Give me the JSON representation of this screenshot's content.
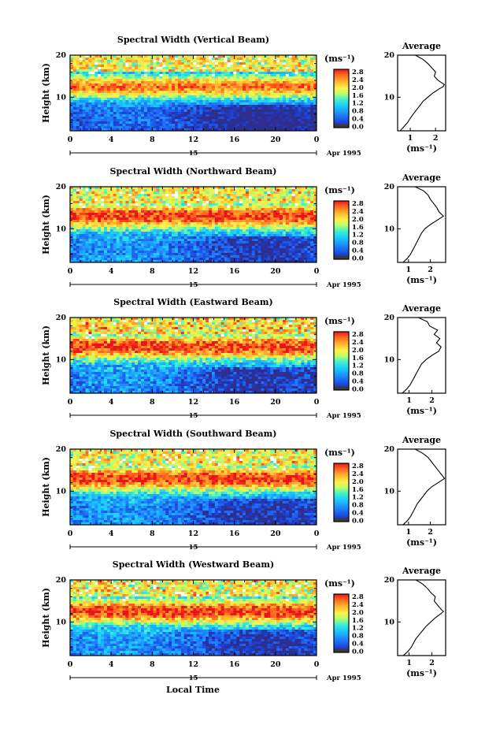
{
  "figure": {
    "colorbar_unit": "(ms⁻¹)",
    "colorbar_ticks": [
      "0.0",
      "0.4",
      "0.8",
      "1.2",
      "1.6",
      "2.0",
      "2.4",
      "2.8"
    ],
    "height_label": "Height (km)",
    "x_ticks": [
      "0",
      "4",
      "8",
      "12",
      "16",
      "20",
      "0"
    ],
    "date_day": "15",
    "date_month_year": "Apr 1995",
    "xlabel": "Local Time",
    "average_title": "Average",
    "average_unit": "(ms⁻¹)",
    "height_ticks": [
      "20",
      "10"
    ]
  },
  "chart_data": [
    {
      "type": "heatmap",
      "title": "Spectral Width (Vertical Beam)",
      "x": "Local Time (h)",
      "xlim": [
        0,
        24
      ],
      "ylim": [
        2,
        20
      ],
      "colorbar_range": [
        0.0,
        2.8
      ],
      "pattern": {
        "low": 0.35,
        "peak": 2.45,
        "peak_height": 12.5,
        "top": 1.9,
        "noise": 0.35
      },
      "average_profile": {
        "xticks": [
          "1",
          "2"
        ],
        "xlim": [
          0.5,
          2.4
        ],
        "height": [
          2,
          3,
          4,
          5,
          6,
          7,
          8,
          9,
          10,
          11,
          12,
          12.5,
          13,
          14,
          15,
          16,
          17,
          18,
          19,
          20
        ],
        "value": [
          0.6,
          0.75,
          0.9,
          1.0,
          1.12,
          1.25,
          1.38,
          1.5,
          1.7,
          1.9,
          2.15,
          2.3,
          2.35,
          2.1,
          1.95,
          2.0,
          1.85,
          1.7,
          1.5,
          1.2
        ]
      }
    },
    {
      "type": "heatmap",
      "title": "Spectral Width (Northward Beam)",
      "x": "Local Time (h)",
      "xlim": [
        0,
        24
      ],
      "ylim": [
        2,
        20
      ],
      "colorbar_range": [
        0.0,
        2.8
      ],
      "pattern": {
        "low": 0.6,
        "peak": 2.7,
        "peak_height": 13.0,
        "top": 1.9,
        "noise": 0.4
      },
      "average_profile": {
        "xticks": [
          "1",
          "2"
        ],
        "xlim": [
          0.5,
          2.7
        ],
        "height": [
          2,
          3,
          4,
          5,
          6,
          7,
          8,
          9,
          10,
          11,
          12,
          13,
          14,
          15,
          16,
          17,
          18,
          19,
          20
        ],
        "value": [
          0.75,
          0.95,
          1.1,
          1.2,
          1.3,
          1.4,
          1.5,
          1.6,
          1.75,
          2.0,
          2.3,
          2.6,
          2.4,
          2.3,
          2.15,
          2.0,
          1.9,
          1.7,
          1.3
        ]
      }
    },
    {
      "type": "heatmap",
      "title": "Spectral Width (Eastward Beam)",
      "x": "Local Time (h)",
      "xlim": [
        0,
        24
      ],
      "ylim": [
        2,
        20
      ],
      "colorbar_range": [
        0.0,
        2.8
      ],
      "pattern": {
        "low": 0.6,
        "peak": 2.7,
        "peak_height": 13.0,
        "top": 2.0,
        "noise": 0.45
      },
      "average_profile": {
        "xticks": [
          "1",
          "2"
        ],
        "xlim": [
          0.5,
          2.6
        ],
        "height": [
          2,
          3,
          4,
          5,
          6,
          7,
          8,
          9,
          10,
          11,
          12,
          13,
          14,
          15,
          16,
          17,
          18,
          19,
          20
        ],
        "value": [
          0.7,
          0.9,
          1.05,
          1.15,
          1.25,
          1.35,
          1.45,
          1.55,
          1.75,
          2.0,
          2.3,
          2.4,
          2.2,
          2.35,
          2.1,
          2.25,
          1.9,
          1.8,
          1.4
        ]
      }
    },
    {
      "type": "heatmap",
      "title": "Spectral Width (Southward Beam)",
      "x": "Local Time (h)",
      "xlim": [
        0,
        24
      ],
      "ylim": [
        2,
        20
      ],
      "colorbar_range": [
        0.0,
        2.8
      ],
      "pattern": {
        "low": 0.6,
        "peak": 2.7,
        "peak_height": 13.0,
        "top": 1.9,
        "noise": 0.4
      },
      "average_profile": {
        "xticks": [
          "1",
          "2"
        ],
        "xlim": [
          0.5,
          2.7
        ],
        "height": [
          2,
          3,
          4,
          5,
          6,
          7,
          8,
          9,
          10,
          11,
          12,
          13,
          14,
          15,
          16,
          17,
          18,
          19,
          20
        ],
        "value": [
          0.75,
          0.95,
          1.1,
          1.2,
          1.3,
          1.4,
          1.55,
          1.7,
          1.85,
          2.05,
          2.35,
          2.65,
          2.5,
          2.35,
          2.2,
          2.05,
          1.9,
          1.65,
          1.3
        ]
      }
    },
    {
      "type": "heatmap",
      "title": "Spectral Width (Westward Beam)",
      "x": "Local Time (h)",
      "xlim": [
        0,
        24
      ],
      "ylim": [
        2,
        20
      ],
      "colorbar_range": [
        0.0,
        2.8
      ],
      "pattern": {
        "low": 0.6,
        "peak": 2.7,
        "peak_height": 12.5,
        "top": 1.9,
        "noise": 0.4
      },
      "average_profile": {
        "xticks": [
          "1",
          "2"
        ],
        "xlim": [
          0.5,
          2.6
        ],
        "height": [
          2,
          3,
          4,
          5,
          6,
          7,
          8,
          9,
          10,
          11,
          12,
          12.5,
          13,
          14,
          15,
          16,
          17,
          18,
          19,
          20
        ],
        "value": [
          0.75,
          0.95,
          1.1,
          1.2,
          1.3,
          1.45,
          1.6,
          1.75,
          1.95,
          2.15,
          2.4,
          2.5,
          2.4,
          2.25,
          2.1,
          2.15,
          1.95,
          1.8,
          1.6,
          1.3
        ]
      }
    }
  ]
}
